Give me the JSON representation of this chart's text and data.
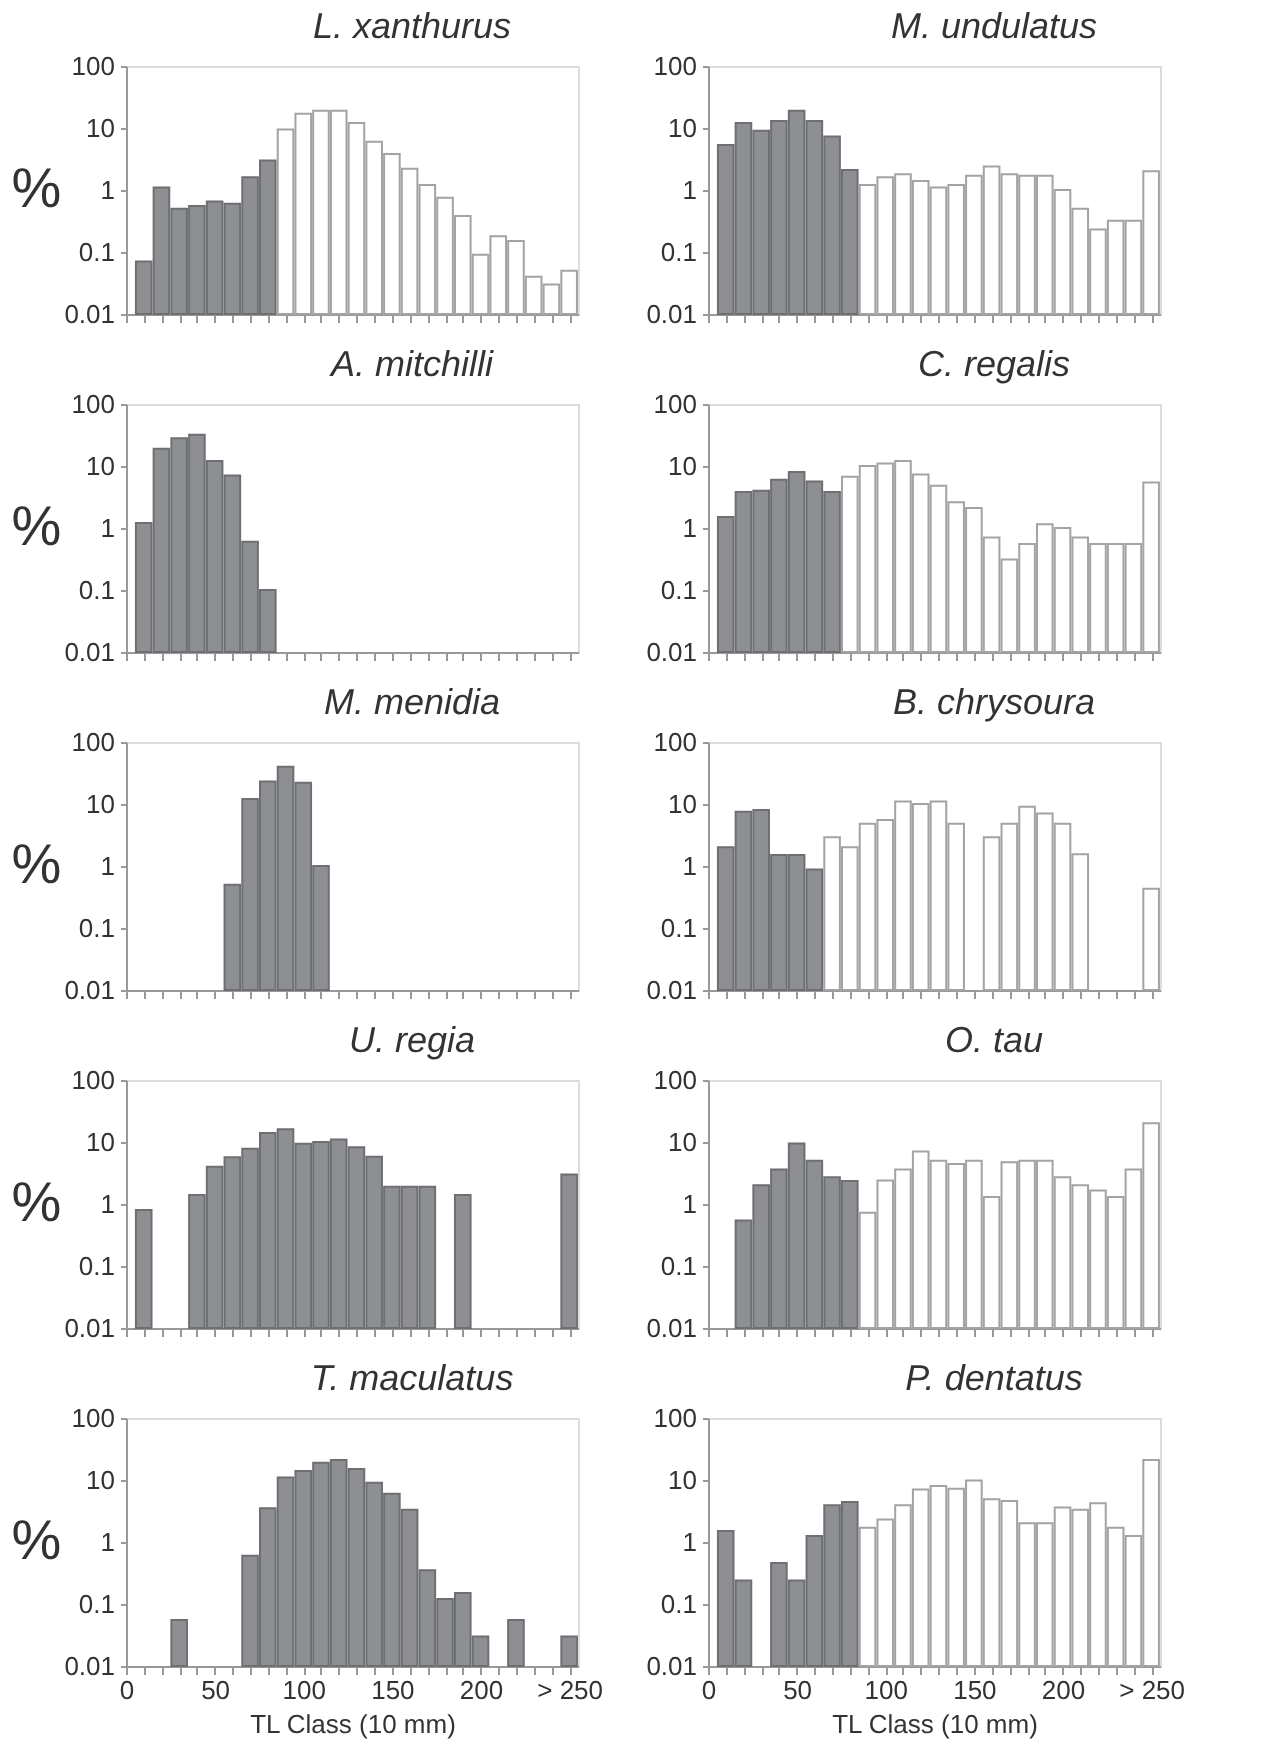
{
  "chart_data": [
    {
      "type": "bar",
      "title": "L. xanthurus",
      "ylabel": "%",
      "log": true,
      "tick_labels": "y",
      "ylim": [
        0.01,
        100
      ],
      "yticks": [
        0.01,
        0.1,
        1,
        10,
        100
      ],
      "xlim": [
        0,
        255
      ],
      "xticks": [
        0,
        {
          "value": 10,
          "label": null
        },
        {
          "value": 20,
          "label": null
        },
        {
          "value": 30,
          "label": null
        },
        {
          "value": 40,
          "label": null
        },
        50,
        {
          "value": 60,
          "label": null
        },
        {
          "value": 70,
          "label": null
        },
        {
          "value": 80,
          "label": null
        },
        {
          "value": 90,
          "label": null
        },
        100,
        {
          "value": 110,
          "label": null
        },
        {
          "value": 120,
          "label": null
        },
        {
          "value": 130,
          "label": null
        },
        {
          "value": 140,
          "label": null
        },
        150,
        {
          "value": 160,
          "label": null
        },
        {
          "value": 170,
          "label": null
        },
        {
          "value": 180,
          "label": null
        },
        {
          "value": 190,
          "label": null
        },
        200,
        {
          "value": 210,
          "label": null
        },
        {
          "value": 220,
          "label": null
        },
        {
          "value": 230,
          "label": null
        },
        {
          "value": 240,
          "label": null
        },
        {
          "value": 250,
          "label": null
        }
      ],
      "x": [
        10,
        20,
        30,
        40,
        50,
        60,
        70,
        80,
        90,
        100,
        110,
        120,
        130,
        140,
        150,
        160,
        170,
        180,
        190,
        200,
        210,
        220,
        230,
        240,
        250
      ],
      "series": [
        {
          "color": "#8e8f93",
          "values": [
            0.07,
            1.1,
            0.5,
            0.55,
            0.65,
            0.6,
            1.6,
            3,
            null,
            null,
            null,
            null,
            null,
            null,
            null,
            null,
            null,
            null,
            null,
            null,
            null,
            null,
            null,
            null,
            null
          ]
        },
        {
          "color": "#ffffff",
          "values": [
            null,
            null,
            null,
            null,
            null,
            null,
            null,
            null,
            9.5,
            17,
            19,
            19,
            12,
            6,
            3.8,
            2.2,
            1.2,
            0.75,
            0.38,
            0.09,
            0.18,
            0.15,
            0.04,
            0.03,
            0.05
          ]
        }
      ]
    },
    {
      "type": "bar",
      "title": "A. mitchilli",
      "ylabel": "%",
      "log": true,
      "tick_labels": "y",
      "ylim": [
        0.01,
        100
      ],
      "yticks": [
        0.01,
        0.1,
        1,
        10,
        100
      ],
      "xlim": [
        0,
        255
      ],
      "xticks": [
        0,
        {
          "value": 10,
          "label": null
        },
        {
          "value": 20,
          "label": null
        },
        {
          "value": 30,
          "label": null
        },
        {
          "value": 40,
          "label": null
        },
        50,
        {
          "value": 60,
          "label": null
        },
        {
          "value": 70,
          "label": null
        },
        {
          "value": 80,
          "label": null
        },
        {
          "value": 90,
          "label": null
        },
        100,
        {
          "value": 110,
          "label": null
        },
        {
          "value": 120,
          "label": null
        },
        {
          "value": 130,
          "label": null
        },
        {
          "value": 140,
          "label": null
        },
        150,
        {
          "value": 160,
          "label": null
        },
        {
          "value": 170,
          "label": null
        },
        {
          "value": 180,
          "label": null
        },
        {
          "value": 190,
          "label": null
        },
        200,
        {
          "value": 210,
          "label": null
        },
        {
          "value": 220,
          "label": null
        },
        {
          "value": 230,
          "label": null
        },
        {
          "value": 240,
          "label": null
        },
        {
          "value": 250,
          "label": null
        }
      ],
      "x": [
        10,
        20,
        30,
        40,
        50,
        60,
        70,
        80
      ],
      "series": [
        {
          "color": "#8e8f93",
          "values": [
            1.2,
            19,
            28,
            32,
            12,
            7,
            0.6,
            0.1
          ]
        }
      ]
    },
    {
      "type": "bar",
      "title": "M. menidia",
      "ylabel": "%",
      "log": true,
      "tick_labels": "y",
      "ylim": [
        0.01,
        100
      ],
      "yticks": [
        0.01,
        0.1,
        1,
        10,
        100
      ],
      "xlim": [
        0,
        255
      ],
      "xticks": [
        0,
        {
          "value": 10,
          "label": null
        },
        {
          "value": 20,
          "label": null
        },
        {
          "value": 30,
          "label": null
        },
        {
          "value": 40,
          "label": null
        },
        50,
        {
          "value": 60,
          "label": null
        },
        {
          "value": 70,
          "label": null
        },
        {
          "value": 80,
          "label": null
        },
        {
          "value": 90,
          "label": null
        },
        100,
        {
          "value": 110,
          "label": null
        },
        {
          "value": 120,
          "label": null
        },
        {
          "value": 130,
          "label": null
        },
        {
          "value": 140,
          "label": null
        },
        150,
        {
          "value": 160,
          "label": null
        },
        {
          "value": 170,
          "label": null
        },
        {
          "value": 180,
          "label": null
        },
        {
          "value": 190,
          "label": null
        },
        200,
        {
          "value": 210,
          "label": null
        },
        {
          "value": 220,
          "label": null
        },
        {
          "value": 230,
          "label": null
        },
        {
          "value": 240,
          "label": null
        },
        {
          "value": 250,
          "label": null
        }
      ],
      "x": [
        60,
        70,
        80,
        90,
        100,
        110
      ],
      "series": [
        {
          "color": "#8e8f93",
          "values": [
            0.5,
            12,
            23,
            40,
            22,
            1
          ]
        }
      ]
    },
    {
      "type": "bar",
      "title": "U. regia",
      "ylabel": "%",
      "log": true,
      "tick_labels": "y",
      "ylim": [
        0.01,
        100
      ],
      "yticks": [
        0.01,
        0.1,
        1,
        10,
        100
      ],
      "xlim": [
        0,
        255
      ],
      "xticks": [
        0,
        {
          "value": 10,
          "label": null
        },
        {
          "value": 20,
          "label": null
        },
        {
          "value": 30,
          "label": null
        },
        {
          "value": 40,
          "label": null
        },
        50,
        {
          "value": 60,
          "label": null
        },
        {
          "value": 70,
          "label": null
        },
        {
          "value": 80,
          "label": null
        },
        {
          "value": 90,
          "label": null
        },
        100,
        {
          "value": 110,
          "label": null
        },
        {
          "value": 120,
          "label": null
        },
        {
          "value": 130,
          "label": null
        },
        {
          "value": 140,
          "label": null
        },
        150,
        {
          "value": 160,
          "label": null
        },
        {
          "value": 170,
          "label": null
        },
        {
          "value": 180,
          "label": null
        },
        {
          "value": 190,
          "label": null
        },
        200,
        {
          "value": 210,
          "label": null
        },
        {
          "value": 220,
          "label": null
        },
        {
          "value": 230,
          "label": null
        },
        {
          "value": 240,
          "label": null
        },
        {
          "value": 250,
          "label": null
        }
      ],
      "x": [
        10,
        20,
        30,
        40,
        50,
        60,
        70,
        80,
        90,
        100,
        110,
        120,
        130,
        140,
        150,
        160,
        170,
        180,
        190,
        200,
        210,
        220,
        230,
        240,
        250
      ],
      "series": [
        {
          "color": "#8e8f93",
          "values": [
            0.8,
            null,
            null,
            1.4,
            4,
            5.7,
            7.8,
            14,
            16,
            9.4,
            10,
            11,
            8.2,
            5.8,
            1.9,
            1.9,
            1.9,
            null,
            1.4,
            null,
            null,
            null,
            null,
            null,
            3
          ]
        }
      ]
    },
    {
      "type": "bar",
      "title": "T. maculatus",
      "ylabel": "%",
      "xlabel": "TL Class (10 mm)",
      "log": true,
      "ylim": [
        0.01,
        100
      ],
      "yticks": [
        0.01,
        0.1,
        1,
        10,
        100
      ],
      "xlim": [
        0,
        255
      ],
      "xticks": [
        0,
        {
          "value": 10,
          "label": null
        },
        {
          "value": 20,
          "label": null
        },
        {
          "value": 30,
          "label": null
        },
        {
          "value": 40,
          "label": null
        },
        50,
        {
          "value": 60,
          "label": null
        },
        {
          "value": 70,
          "label": null
        },
        {
          "value": 80,
          "label": null
        },
        {
          "value": 90,
          "label": null
        },
        100,
        {
          "value": 110,
          "label": null
        },
        {
          "value": 120,
          "label": null
        },
        {
          "value": 130,
          "label": null
        },
        {
          "value": 140,
          "label": null
        },
        150,
        {
          "value": 160,
          "label": null
        },
        {
          "value": 170,
          "label": null
        },
        {
          "value": 180,
          "label": null
        },
        {
          "value": 190,
          "label": null
        },
        200,
        {
          "value": 210,
          "label": null
        },
        {
          "value": 220,
          "label": null
        },
        {
          "value": 230,
          "label": null
        },
        {
          "value": 240,
          "label": null
        },
        {
          "value": 250,
          "label": "> 250"
        }
      ],
      "x": [
        30,
        40,
        50,
        60,
        70,
        80,
        90,
        100,
        110,
        120,
        130,
        140,
        150,
        160,
        170,
        180,
        190,
        200,
        210,
        220,
        230,
        240,
        250
      ],
      "series": [
        {
          "color": "#8e8f93",
          "values": [
            0.055,
            null,
            null,
            null,
            0.6,
            3.5,
            11,
            14,
            19,
            21,
            15,
            9,
            6,
            3.3,
            0.35,
            0.12,
            0.15,
            0.03,
            null,
            0.055,
            null,
            null,
            0.03
          ]
        }
      ]
    },
    {
      "type": "bar",
      "title": "M. undulatus",
      "log": true,
      "tick_labels": "y",
      "ylim": [
        0.01,
        100
      ],
      "yticks": [
        0.01,
        0.1,
        1,
        10,
        100
      ],
      "xlim": [
        0,
        255
      ],
      "xticks": [
        0,
        {
          "value": 10,
          "label": null
        },
        {
          "value": 20,
          "label": null
        },
        {
          "value": 30,
          "label": null
        },
        {
          "value": 40,
          "label": null
        },
        50,
        {
          "value": 60,
          "label": null
        },
        {
          "value": 70,
          "label": null
        },
        {
          "value": 80,
          "label": null
        },
        {
          "value": 90,
          "label": null
        },
        100,
        {
          "value": 110,
          "label": null
        },
        {
          "value": 120,
          "label": null
        },
        {
          "value": 130,
          "label": null
        },
        {
          "value": 140,
          "label": null
        },
        150,
        {
          "value": 160,
          "label": null
        },
        {
          "value": 170,
          "label": null
        },
        {
          "value": 180,
          "label": null
        },
        {
          "value": 190,
          "label": null
        },
        200,
        {
          "value": 210,
          "label": null
        },
        {
          "value": 220,
          "label": null
        },
        {
          "value": 230,
          "label": null
        },
        {
          "value": 240,
          "label": null
        },
        {
          "value": 250,
          "label": null
        }
      ],
      "x": [
        10,
        20,
        30,
        40,
        50,
        60,
        70,
        80,
        90,
        100,
        110,
        120,
        130,
        140,
        150,
        160,
        170,
        180,
        190,
        200,
        210,
        220,
        230,
        240,
        250
      ],
      "series": [
        {
          "color": "#8e8f93",
          "values": [
            5.3,
            12,
            9,
            13,
            19,
            13,
            7.3,
            2.1,
            null,
            null,
            null,
            null,
            null,
            null,
            null,
            null,
            null,
            null,
            null,
            null,
            null,
            null,
            null,
            null,
            null
          ]
        },
        {
          "color": "#ffffff",
          "values": [
            null,
            null,
            null,
            null,
            null,
            null,
            null,
            null,
            1.2,
            1.6,
            1.8,
            1.4,
            1.1,
            1.2,
            1.7,
            2.4,
            1.8,
            1.7,
            1.7,
            1,
            0.5,
            0.23,
            0.32,
            0.32,
            2
          ]
        }
      ]
    },
    {
      "type": "bar",
      "title": "C. regalis",
      "log": true,
      "tick_labels": "y",
      "ylim": [
        0.01,
        100
      ],
      "yticks": [
        0.01,
        0.1,
        1,
        10,
        100
      ],
      "xlim": [
        0,
        255
      ],
      "xticks": [
        0,
        {
          "value": 10,
          "label": null
        },
        {
          "value": 20,
          "label": null
        },
        {
          "value": 30,
          "label": null
        },
        {
          "value": 40,
          "label": null
        },
        50,
        {
          "value": 60,
          "label": null
        },
        {
          "value": 70,
          "label": null
        },
        {
          "value": 80,
          "label": null
        },
        {
          "value": 90,
          "label": null
        },
        100,
        {
          "value": 110,
          "label": null
        },
        {
          "value": 120,
          "label": null
        },
        {
          "value": 130,
          "label": null
        },
        {
          "value": 140,
          "label": null
        },
        150,
        {
          "value": 160,
          "label": null
        },
        {
          "value": 170,
          "label": null
        },
        {
          "value": 180,
          "label": null
        },
        {
          "value": 190,
          "label": null
        },
        200,
        {
          "value": 210,
          "label": null
        },
        {
          "value": 220,
          "label": null
        },
        {
          "value": 230,
          "label": null
        },
        {
          "value": 240,
          "label": null
        },
        {
          "value": 250,
          "label": null
        }
      ],
      "x": [
        10,
        20,
        30,
        40,
        50,
        60,
        70,
        80,
        90,
        100,
        110,
        120,
        130,
        140,
        150,
        160,
        170,
        180,
        190,
        200,
        210,
        220,
        230,
        240,
        250
      ],
      "series": [
        {
          "color": "#8e8f93",
          "values": [
            1.5,
            3.8,
            4,
            6,
            8,
            5.6,
            3.8,
            null,
            null,
            null,
            null,
            null,
            null,
            null,
            null,
            null,
            null,
            null,
            null,
            null,
            null,
            null,
            null,
            null,
            null
          ]
        },
        {
          "color": "#ffffff",
          "values": [
            null,
            null,
            null,
            null,
            null,
            null,
            null,
            6.7,
            10,
            11,
            12,
            7.3,
            4.8,
            2.6,
            2.1,
            0.7,
            0.31,
            0.55,
            1.15,
            1,
            0.7,
            0.55,
            0.55,
            0.55,
            5.4
          ]
        }
      ]
    },
    {
      "type": "bar",
      "title": "B. chrysoura",
      "log": true,
      "tick_labels": "y",
      "ylim": [
        0.01,
        100
      ],
      "yticks": [
        0.01,
        0.1,
        1,
        10,
        100
      ],
      "xlim": [
        0,
        255
      ],
      "xticks": [
        0,
        {
          "value": 10,
          "label": null
        },
        {
          "value": 20,
          "label": null
        },
        {
          "value": 30,
          "label": null
        },
        {
          "value": 40,
          "label": null
        },
        50,
        {
          "value": 60,
          "label": null
        },
        {
          "value": 70,
          "label": null
        },
        {
          "value": 80,
          "label": null
        },
        {
          "value": 90,
          "label": null
        },
        100,
        {
          "value": 110,
          "label": null
        },
        {
          "value": 120,
          "label": null
        },
        {
          "value": 130,
          "label": null
        },
        {
          "value": 140,
          "label": null
        },
        150,
        {
          "value": 160,
          "label": null
        },
        {
          "value": 170,
          "label": null
        },
        {
          "value": 180,
          "label": null
        },
        {
          "value": 190,
          "label": null
        },
        200,
        {
          "value": 210,
          "label": null
        },
        {
          "value": 220,
          "label": null
        },
        {
          "value": 230,
          "label": null
        },
        {
          "value": 240,
          "label": null
        },
        {
          "value": 250,
          "label": null
        }
      ],
      "x": [
        10,
        20,
        30,
        40,
        50,
        60,
        70,
        80,
        90,
        100,
        110,
        120,
        130,
        140,
        150,
        160,
        170,
        180,
        190,
        200,
        210,
        220,
        230,
        240,
        250
      ],
      "series": [
        {
          "color": "#8e8f93",
          "values": [
            2,
            7.5,
            8,
            1.5,
            1.5,
            0.88,
            null,
            null,
            null,
            null,
            null,
            null,
            null,
            null,
            null,
            null,
            null,
            null,
            null,
            null,
            null,
            null,
            null,
            null,
            null
          ]
        },
        {
          "color": "#ffffff",
          "values": [
            null,
            null,
            null,
            null,
            null,
            null,
            2.9,
            2,
            4.8,
            5.5,
            11,
            10,
            11,
            4.8,
            null,
            2.9,
            4.8,
            9,
            7,
            4.8,
            1.55,
            null,
            null,
            null,
            0.43
          ]
        }
      ]
    },
    {
      "type": "bar",
      "title": "O. tau",
      "log": true,
      "tick_labels": "y",
      "ylim": [
        0.01,
        100
      ],
      "yticks": [
        0.01,
        0.1,
        1,
        10,
        100
      ],
      "xlim": [
        0,
        255
      ],
      "xticks": [
        0,
        {
          "value": 10,
          "label": null
        },
        {
          "value": 20,
          "label": null
        },
        {
          "value": 30,
          "label": null
        },
        {
          "value": 40,
          "label": null
        },
        50,
        {
          "value": 60,
          "label": null
        },
        {
          "value": 70,
          "label": null
        },
        {
          "value": 80,
          "label": null
        },
        {
          "value": 90,
          "label": null
        },
        100,
        {
          "value": 110,
          "label": null
        },
        {
          "value": 120,
          "label": null
        },
        {
          "value": 130,
          "label": null
        },
        {
          "value": 140,
          "label": null
        },
        150,
        {
          "value": 160,
          "label": null
        },
        {
          "value": 170,
          "label": null
        },
        {
          "value": 180,
          "label": null
        },
        {
          "value": 190,
          "label": null
        },
        200,
        {
          "value": 210,
          "label": null
        },
        {
          "value": 220,
          "label": null
        },
        {
          "value": 230,
          "label": null
        },
        {
          "value": 240,
          "label": null
        },
        {
          "value": 250,
          "label": null
        }
      ],
      "x": [
        20,
        30,
        40,
        50,
        60,
        70,
        80,
        90,
        100,
        110,
        120,
        130,
        140,
        150,
        160,
        170,
        180,
        190,
        200,
        210,
        220,
        230,
        240,
        250
      ],
      "series": [
        {
          "color": "#8e8f93",
          "values": [
            0.54,
            2,
            3.6,
            9.5,
            5,
            2.7,
            2.35,
            null,
            null,
            null,
            null,
            null,
            null,
            null,
            null,
            null,
            null,
            null,
            null,
            null,
            null,
            null,
            null,
            null
          ]
        },
        {
          "color": "#ffffff",
          "values": [
            null,
            null,
            null,
            null,
            null,
            null,
            null,
            0.72,
            2.4,
            3.6,
            7,
            5,
            4.4,
            5,
            1.3,
            4.7,
            5,
            5,
            2.7,
            2,
            1.65,
            1.3,
            3.6,
            20
          ]
        }
      ]
    },
    {
      "type": "bar",
      "title": "P. dentatus",
      "xlabel": "TL Class (10 mm)",
      "log": true,
      "ylim": [
        0.01,
        100
      ],
      "yticks": [
        0.01,
        0.1,
        1,
        10,
        100
      ],
      "xlim": [
        0,
        255
      ],
      "xticks": [
        0,
        {
          "value": 10,
          "label": null
        },
        {
          "value": 20,
          "label": null
        },
        {
          "value": 30,
          "label": null
        },
        {
          "value": 40,
          "label": null
        },
        50,
        {
          "value": 60,
          "label": null
        },
        {
          "value": 70,
          "label": null
        },
        {
          "value": 80,
          "label": null
        },
        {
          "value": 90,
          "label": null
        },
        100,
        {
          "value": 110,
          "label": null
        },
        {
          "value": 120,
          "label": null
        },
        {
          "value": 130,
          "label": null
        },
        {
          "value": 140,
          "label": null
        },
        150,
        {
          "value": 160,
          "label": null
        },
        {
          "value": 170,
          "label": null
        },
        {
          "value": 180,
          "label": null
        },
        {
          "value": 190,
          "label": null
        },
        200,
        {
          "value": 210,
          "label": null
        },
        {
          "value": 220,
          "label": null
        },
        {
          "value": 230,
          "label": null
        },
        {
          "value": 240,
          "label": null
        },
        {
          "value": 250,
          "label": "> 250"
        }
      ],
      "x": [
        10,
        20,
        30,
        40,
        50,
        60,
        70,
        80,
        90,
        100,
        110,
        120,
        130,
        140,
        150,
        160,
        170,
        180,
        190,
        200,
        210,
        220,
        230,
        240,
        250
      ],
      "series": [
        {
          "color": "#8e8f93",
          "values": [
            1.5,
            0.24,
            null,
            0.46,
            0.24,
            1.25,
            3.9,
            4.4,
            null,
            null,
            null,
            null,
            null,
            null,
            null,
            null,
            null,
            null,
            null,
            null,
            null,
            null,
            null,
            null,
            null
          ]
        },
        {
          "color": "#ffffff",
          "values": [
            null,
            null,
            null,
            null,
            null,
            null,
            null,
            null,
            1.7,
            2.3,
            3.9,
            7,
            8,
            7.2,
            9.8,
            4.9,
            4.6,
            2,
            2,
            3.6,
            3.3,
            4.2,
            1.7,
            1.25,
            21
          ]
        }
      ]
    }
  ]
}
